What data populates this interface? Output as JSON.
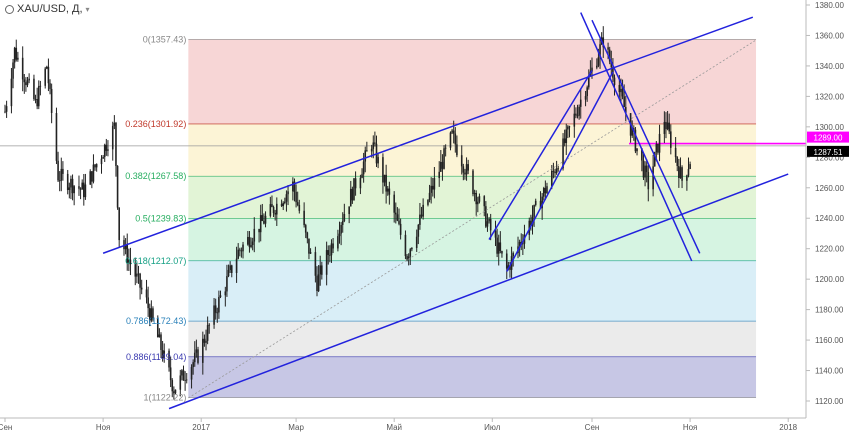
{
  "header": {
    "symbol": "XAU/USD, Д,",
    "menu_icon": "chevron-down-icon"
  },
  "chart_data": {
    "type": "candlestick",
    "title": "",
    "xlabel": "",
    "ylabel": "",
    "ylim": [
      1110,
      1385
    ],
    "y_ticks": [
      1120,
      1140,
      1160,
      1180,
      1200,
      1220,
      1240,
      1260,
      1280,
      1300,
      1320,
      1340,
      1360,
      1380
    ],
    "x_ticks": [
      {
        "label": "Сен",
        "date": "2016-09-01"
      },
      {
        "label": "Ноя",
        "date": "2016-11-01"
      },
      {
        "label": "2017",
        "date": "2017-01-01"
      },
      {
        "label": "Мар",
        "date": "2017-03-01"
      },
      {
        "label": "Май",
        "date": "2017-05-01"
      },
      {
        "label": "Июл",
        "date": "2017-07-01"
      },
      {
        "label": "Сен",
        "date": "2017-09-01"
      },
      {
        "label": "Ноя",
        "date": "2017-11-01"
      },
      {
        "label": "2018",
        "date": "2018-01-01"
      }
    ],
    "price_path": [
      {
        "date": "2016-09-01",
        "price": 1310
      },
      {
        "date": "2016-09-07",
        "price": 1350
      },
      {
        "date": "2016-09-20",
        "price": 1315
      },
      {
        "date": "2016-09-27",
        "price": 1340
      },
      {
        "date": "2016-10-04",
        "price": 1268
      },
      {
        "date": "2016-10-20",
        "price": 1258
      },
      {
        "date": "2016-11-08",
        "price": 1300
      },
      {
        "date": "2016-11-11",
        "price": 1228
      },
      {
        "date": "2016-11-28",
        "price": 1185
      },
      {
        "date": "2016-12-15",
        "price": 1128
      },
      {
        "date": "2016-12-30",
        "price": 1150
      },
      {
        "date": "2017-01-24",
        "price": 1218
      },
      {
        "date": "2017-02-27",
        "price": 1262
      },
      {
        "date": "2017-03-14",
        "price": 1198
      },
      {
        "date": "2017-04-17",
        "price": 1290
      },
      {
        "date": "2017-05-09",
        "price": 1216
      },
      {
        "date": "2017-06-06",
        "price": 1294
      },
      {
        "date": "2017-07-10",
        "price": 1206
      },
      {
        "date": "2017-08-08",
        "price": 1270
      },
      {
        "date": "2017-09-08",
        "price": 1357
      },
      {
        "date": "2017-10-06",
        "price": 1262
      },
      {
        "date": "2017-10-16",
        "price": 1305
      },
      {
        "date": "2017-10-27",
        "price": 1265
      },
      {
        "date": "2017-11-01",
        "price": 1278
      }
    ],
    "fibonacci": {
      "color_lines": "#cccccc",
      "levels": [
        {
          "label": "0(1357.43)",
          "price": 1357.43,
          "color": "#888888",
          "fill": "#f4c8c8"
        },
        {
          "label": "0.236(1301.92)",
          "price": 1301.92,
          "color": "#c0392b",
          "fill": "#fbf0c8"
        },
        {
          "label": "0.382(1267.58)",
          "price": 1267.58,
          "color": "#27ae60",
          "fill": "#d8f0c8"
        },
        {
          "label": "0.5(1239.83)",
          "price": 1239.83,
          "color": "#27ae60",
          "fill": "#c8f0d8"
        },
        {
          "label": "0.618(1212.07)",
          "price": 1212.07,
          "color": "#16a085",
          "fill": "#cce8f4"
        },
        {
          "label": "0.786(1172.43)",
          "price": 1172.43,
          "color": "#2980b9",
          "fill": "#e4e4e4"
        },
        {
          "label": "0.886(1149.04)",
          "price": 1149.04,
          "color": "#3b3bb0",
          "fill": "#b4b4dc"
        },
        {
          "label": "1(1122.22)",
          "price": 1122.22,
          "color": "#888888",
          "fill": null
        }
      ],
      "x_start": "2016-12-24",
      "x_end": "2017-12-12"
    },
    "trend_lines": [
      {
        "name": "channel-upper",
        "from": {
          "date": "2016-11-01",
          "price": 1217
        },
        "to": {
          "date": "2017-12-10",
          "price": 1372
        }
      },
      {
        "name": "channel-lower",
        "from": {
          "date": "2016-12-12",
          "price": 1115
        },
        "to": {
          "date": "2018-01-01",
          "price": 1269
        }
      },
      {
        "name": "rally-upper",
        "from": {
          "date": "2017-06-29",
          "price": 1226
        },
        "to": {
          "date": "2017-09-01",
          "price": 1337
        }
      },
      {
        "name": "rally-lower",
        "from": {
          "date": "2017-07-10",
          "price": 1205
        },
        "to": {
          "date": "2017-09-14",
          "price": 1336
        }
      },
      {
        "name": "down-line-1",
        "from": {
          "date": "2017-08-25",
          "price": 1375
        },
        "to": {
          "date": "2017-11-02",
          "price": 1212
        }
      },
      {
        "name": "down-line-2",
        "from": {
          "date": "2017-09-01",
          "price": 1370
        },
        "to": {
          "date": "2017-11-07",
          "price": 1217
        }
      },
      {
        "name": "fib-diagonal",
        "from": {
          "date": "2016-12-24",
          "price": 1122
        },
        "to": {
          "date": "2017-12-12",
          "price": 1357
        }
      }
    ],
    "horizontal_lines": [
      {
        "name": "magenta-level",
        "price": 1289.0,
        "from": "2017-09-24",
        "color": "#ff00ff"
      },
      {
        "name": "current-price-line",
        "price": 1287.51,
        "color": "#999999"
      }
    ],
    "price_labels": [
      {
        "text": "1289.00",
        "price": 1289.0,
        "color": "#ff00ff"
      },
      {
        "text": "1287.51",
        "price": 1287.51,
        "color": "#000000"
      }
    ],
    "colors": {
      "candles": "#222222",
      "trend_lines": "#2222dd",
      "axis": "#bbbbbb"
    }
  }
}
